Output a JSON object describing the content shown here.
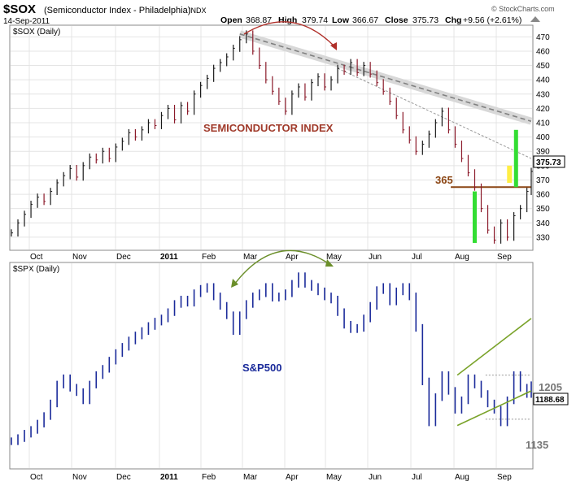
{
  "header": {
    "symbol": "$SOX",
    "name": "(Semiconductor Index - Philadelphia)",
    "exchange": "INDX",
    "date": "14-Sep-2011",
    "open_label": "Open",
    "open": "368.87",
    "high_label": "High",
    "high": "379.74",
    "low_label": "Low",
    "low": "366.67",
    "close_label": "Close",
    "close": "375.73",
    "chg_label": "Chg",
    "chg": "+9.56 (+2.61%)",
    "credit": "© StockCharts.com"
  },
  "colors": {
    "up": "#1a1a1a",
    "down": "#8b1a2a",
    "sp": "#1a2a9a",
    "green_bar": "#33dd33",
    "yellow_bar": "#ffee44",
    "level_line": "#8b4513",
    "trend_line": "#808080",
    "channel": "#7aa32a",
    "arc_sox": "#b0302a",
    "arc_sp": "#6b8f2a",
    "grid": "#e4e4e4"
  },
  "chart_data": [
    {
      "type": "line",
      "panel_label": "$SOX (Daily)",
      "title": "SEMICONDUCTOR INDEX",
      "months": [
        "Oct",
        "Nov",
        "Dec",
        "2011",
        "Feb",
        "Mar",
        "Apr",
        "May",
        "Jun",
        "Jul",
        "Aug",
        "Sep"
      ],
      "y_ticks": [
        330,
        340,
        350,
        360,
        370,
        380,
        390,
        400,
        410,
        420,
        430,
        440,
        450,
        460,
        470
      ],
      "ylim": [
        322,
        477
      ],
      "last_value": "375.73",
      "level_label": "365",
      "level_value": 365,
      "series": [
        {
          "x": [
            0,
            3,
            6,
            9,
            12,
            15,
            18,
            21,
            24,
            27,
            30,
            33,
            36,
            39,
            42,
            45,
            48,
            51,
            54,
            57,
            60,
            63,
            66,
            69,
            72,
            75,
            78,
            81,
            84,
            87,
            90,
            93,
            96,
            99,
            102,
            105,
            108,
            111,
            114,
            117,
            120,
            123,
            126,
            129,
            132,
            135,
            138,
            141,
            144,
            147,
            150,
            153,
            156,
            159,
            162,
            165,
            168,
            171,
            174,
            177,
            180,
            183,
            186,
            189,
            192,
            195,
            198,
            201,
            204,
            207,
            210,
            213,
            216,
            219,
            222,
            225,
            228,
            231,
            234,
            237,
            239
          ],
          "values": [
            333,
            340,
            346,
            353,
            358,
            355,
            362,
            368,
            373,
            378,
            372,
            380,
            386,
            384,
            390,
            385,
            393,
            397,
            403,
            400,
            405,
            410,
            408,
            415,
            420,
            412,
            422,
            418,
            430,
            436,
            441,
            448,
            452,
            456,
            462,
            468,
            472,
            460,
            450,
            440,
            432,
            425,
            418,
            430,
            435,
            428,
            438,
            442,
            435,
            440,
            448,
            446,
            452,
            445,
            450,
            444,
            438,
            432,
            425,
            415,
            405,
            398,
            390,
            395,
            402,
            410,
            418,
            405,
            395,
            385,
            375,
            365,
            350,
            335,
            328,
            340,
            330,
            345,
            350,
            362,
            376
          ]
        }
      ],
      "trendline": {
        "x": [
          105,
          239
        ],
        "y": [
          472,
          411
        ]
      },
      "trendline2": {
        "x": [
          150,
          239
        ],
        "y": [
          448,
          385
        ]
      },
      "green_bars": [
        {
          "x": 213,
          "low": 326,
          "high": 362
        },
        {
          "x": 232,
          "low": 365,
          "high": 405
        }
      ],
      "yellow_bar": {
        "x": 229,
        "low": 368,
        "high": 380
      }
    },
    {
      "type": "line",
      "panel_label": "$SPX (Daily)",
      "title": "S&P500",
      "months": [
        "Oct",
        "Nov",
        "Dec",
        "2011",
        "Feb",
        "Mar",
        "Apr",
        "May",
        "Jun",
        "Jul",
        "Aug",
        "Sep"
      ],
      "level_labels": [
        "1205",
        "1135"
      ],
      "last_value": "1188.68",
      "ylim": [
        1060,
        1380
      ],
      "series": [
        {
          "x": [
            0,
            3,
            6,
            9,
            12,
            15,
            18,
            21,
            24,
            27,
            30,
            33,
            36,
            39,
            42,
            45,
            48,
            51,
            54,
            57,
            60,
            63,
            66,
            69,
            72,
            75,
            78,
            81,
            84,
            87,
            90,
            93,
            96,
            99,
            102,
            105,
            108,
            111,
            114,
            117,
            120,
            123,
            126,
            129,
            132,
            135,
            138,
            141,
            144,
            147,
            150,
            153,
            156,
            159,
            162,
            165,
            168,
            171,
            174,
            177,
            180,
            183,
            186,
            189,
            192,
            195,
            198,
            201,
            204,
            207,
            210,
            213,
            216,
            219,
            222,
            225,
            228,
            231,
            234,
            237,
            239
          ],
          "values": [
            1100,
            1105,
            1112,
            1118,
            1128,
            1140,
            1160,
            1190,
            1200,
            1185,
            1178,
            1165,
            1190,
            1205,
            1215,
            1228,
            1240,
            1250,
            1260,
            1268,
            1275,
            1283,
            1290,
            1295,
            1305,
            1318,
            1325,
            1320,
            1335,
            1342,
            1345,
            1330,
            1315,
            1300,
            1275,
            1300,
            1318,
            1330,
            1335,
            1345,
            1328,
            1330,
            1335,
            1350,
            1362,
            1350,
            1345,
            1338,
            1330,
            1325,
            1305,
            1285,
            1278,
            1280,
            1295,
            1315,
            1340,
            1345,
            1322,
            1338,
            1345,
            1330,
            1280,
            1195,
            1130,
            1170,
            1205,
            1180,
            1150,
            1165,
            1200,
            1190,
            1175,
            1160,
            1150,
            1130,
            1165,
            1205,
            1185,
            1175,
            1189
          ]
        }
      ],
      "channel_upper": {
        "x": [
          205,
          239
        ],
        "y": [
          1205,
          1295
        ]
      },
      "channel_lower": {
        "x": [
          205,
          239
        ],
        "y": [
          1125,
          1180
        ]
      },
      "levels": [
        1205,
        1135
      ]
    }
  ]
}
